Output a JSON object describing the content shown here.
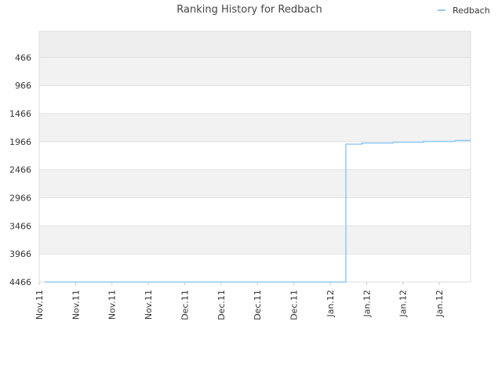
{
  "chart_data": {
    "type": "line",
    "title": "Ranking History for Redbach",
    "x": [
      0.15,
      8.43,
      8.43,
      8.87,
      8.87,
      9.73,
      9.73,
      10.57,
      10.57,
      11.43,
      11.43,
      11.86
    ],
    "series": [
      {
        "name": "Redbach",
        "color": "#90caf9",
        "values": [
          4466,
          4466,
          2010,
          2010,
          1990,
          1990,
          1975,
          1975,
          1960,
          1960,
          1945,
          1945
        ]
      }
    ],
    "xlim": [
      0,
      11.86
    ],
    "xticks": [
      {
        "value": 0,
        "label": "Nov.11"
      },
      {
        "value": 1,
        "label": "Nov.11"
      },
      {
        "value": 2,
        "label": "Nov.11"
      },
      {
        "value": 3,
        "label": "Nov.11"
      },
      {
        "value": 4,
        "label": "Dec.11"
      },
      {
        "value": 5,
        "label": "Dec.11"
      },
      {
        "value": 6,
        "label": "Dec.11"
      },
      {
        "value": 7,
        "label": "Dec.11"
      },
      {
        "value": 8,
        "label": "Jan.12"
      },
      {
        "value": 9,
        "label": "Jan.12"
      },
      {
        "value": 10,
        "label": "Jan.12"
      },
      {
        "value": 11,
        "label": "Jan.12"
      }
    ],
    "ylim": [
      4466,
      0
    ],
    "yticks": [
      466,
      966,
      1466,
      1966,
      2466,
      2966,
      3466,
      3966,
      4466
    ],
    "grid": true,
    "legend": "top-right"
  }
}
